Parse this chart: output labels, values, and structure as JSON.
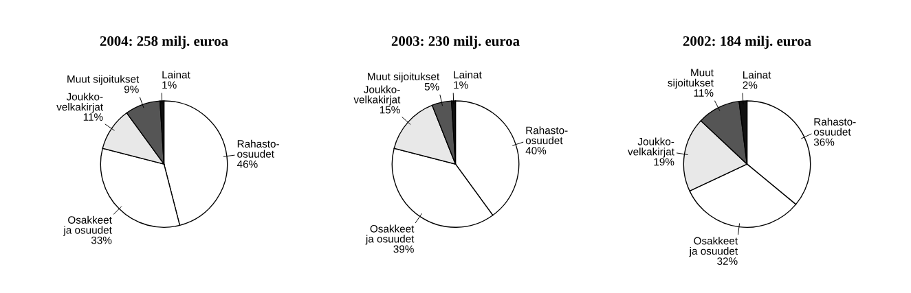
{
  "chart_data": [
    {
      "type": "pie",
      "title": "2004: 258 milj. euroa",
      "categories": [
        "Rahasto-\nosuudet",
        "Osakkeet\nja osuudet",
        "Joukko-\nvelkakirjat",
        "Muut sijoitukset",
        "Lainat"
      ],
      "values": [
        46,
        33,
        11,
        9,
        1
      ],
      "value_labels": [
        "46%",
        "33%",
        "11%",
        "9%",
        "1%"
      ],
      "colors": [
        "#ffffff",
        "#ffffff",
        "#e8e8e8",
        "#555555",
        "#111111"
      ]
    },
    {
      "type": "pie",
      "title": "2003: 230 milj. euroa",
      "categories": [
        "Rahasto-\nosuudet",
        "Osakkeet\nja osuudet",
        "Joukko-\nvelkakirjat",
        "Muut sijoitukset",
        "Lainat"
      ],
      "values": [
        40,
        39,
        15,
        5,
        1
      ],
      "value_labels": [
        "40%",
        "39%",
        "15%",
        "5%",
        "1%"
      ],
      "colors": [
        "#ffffff",
        "#ffffff",
        "#e8e8e8",
        "#555555",
        "#111111"
      ]
    },
    {
      "type": "pie",
      "title": "2002: 184 milj. euroa",
      "categories": [
        "Rahasto-\nosuudet",
        "Osakkeet\nja osuudet",
        "Joukko-\nvelkakirjat",
        "Muut\nsijoitukset",
        "Lainat"
      ],
      "values": [
        36,
        32,
        19,
        11,
        2
      ],
      "value_labels": [
        "36%",
        "32%",
        "19%",
        "11%",
        "2%"
      ],
      "colors": [
        "#ffffff",
        "#ffffff",
        "#e8e8e8",
        "#555555",
        "#111111"
      ]
    }
  ]
}
